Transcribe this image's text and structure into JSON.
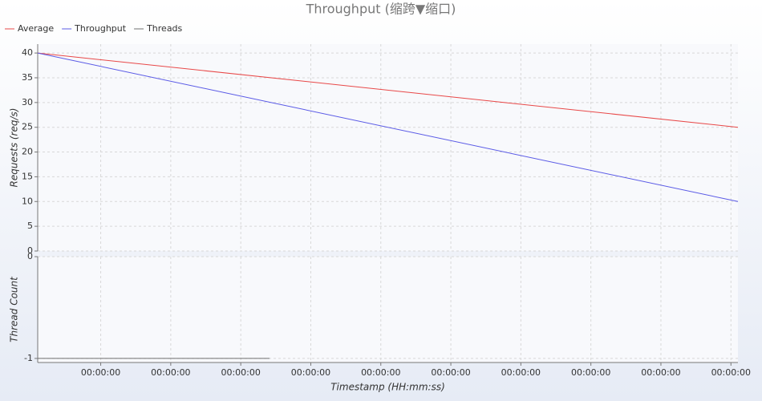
{
  "chart_data": [
    {
      "type": "line",
      "title": "Throughput (缩跨▼缩口)",
      "ylabel": "Requests (req/s)",
      "xlim": [
        0.1,
        10.1
      ],
      "ylim": [
        0,
        41.8
      ],
      "yticks": [
        0,
        5,
        10,
        15,
        20,
        25,
        30,
        35,
        40
      ],
      "grid": true,
      "series": [
        {
          "name": "Average",
          "color": "#e84848",
          "x": [
            0.1,
            10.1
          ],
          "values": [
            40,
            25
          ]
        },
        {
          "name": "Throughput",
          "color": "#5a5ae6",
          "x": [
            0.1,
            10.1
          ],
          "values": [
            40,
            10
          ]
        }
      ]
    },
    {
      "type": "line",
      "ylabel": "Thread Count",
      "xlabel": "Timestamp (HH:mm:ss)",
      "xlim": [
        0.1,
        10.1
      ],
      "ylim": [
        -1.04,
        0
      ],
      "yticks": [
        0,
        -1
      ],
      "grid": true,
      "xticks": [
        {
          "value": 1,
          "label": "00:00:00"
        },
        {
          "value": 2,
          "label": "00:00:00"
        },
        {
          "value": 3,
          "label": "00:00:00"
        },
        {
          "value": 4,
          "label": "00:00:00"
        },
        {
          "value": 5,
          "label": "00:00:00"
        },
        {
          "value": 6,
          "label": "00:00:00"
        },
        {
          "value": 7,
          "label": "00:00:00"
        },
        {
          "value": 8,
          "label": "00:00:00"
        },
        {
          "value": 9,
          "label": "00:00:00"
        },
        {
          "value": 10,
          "label": "00:00:00"
        }
      ],
      "series": [
        {
          "name": "Threads",
          "color": "#707070",
          "x": [
            0.1,
            3.41
          ],
          "values": [
            -1,
            -1
          ]
        }
      ]
    }
  ]
}
